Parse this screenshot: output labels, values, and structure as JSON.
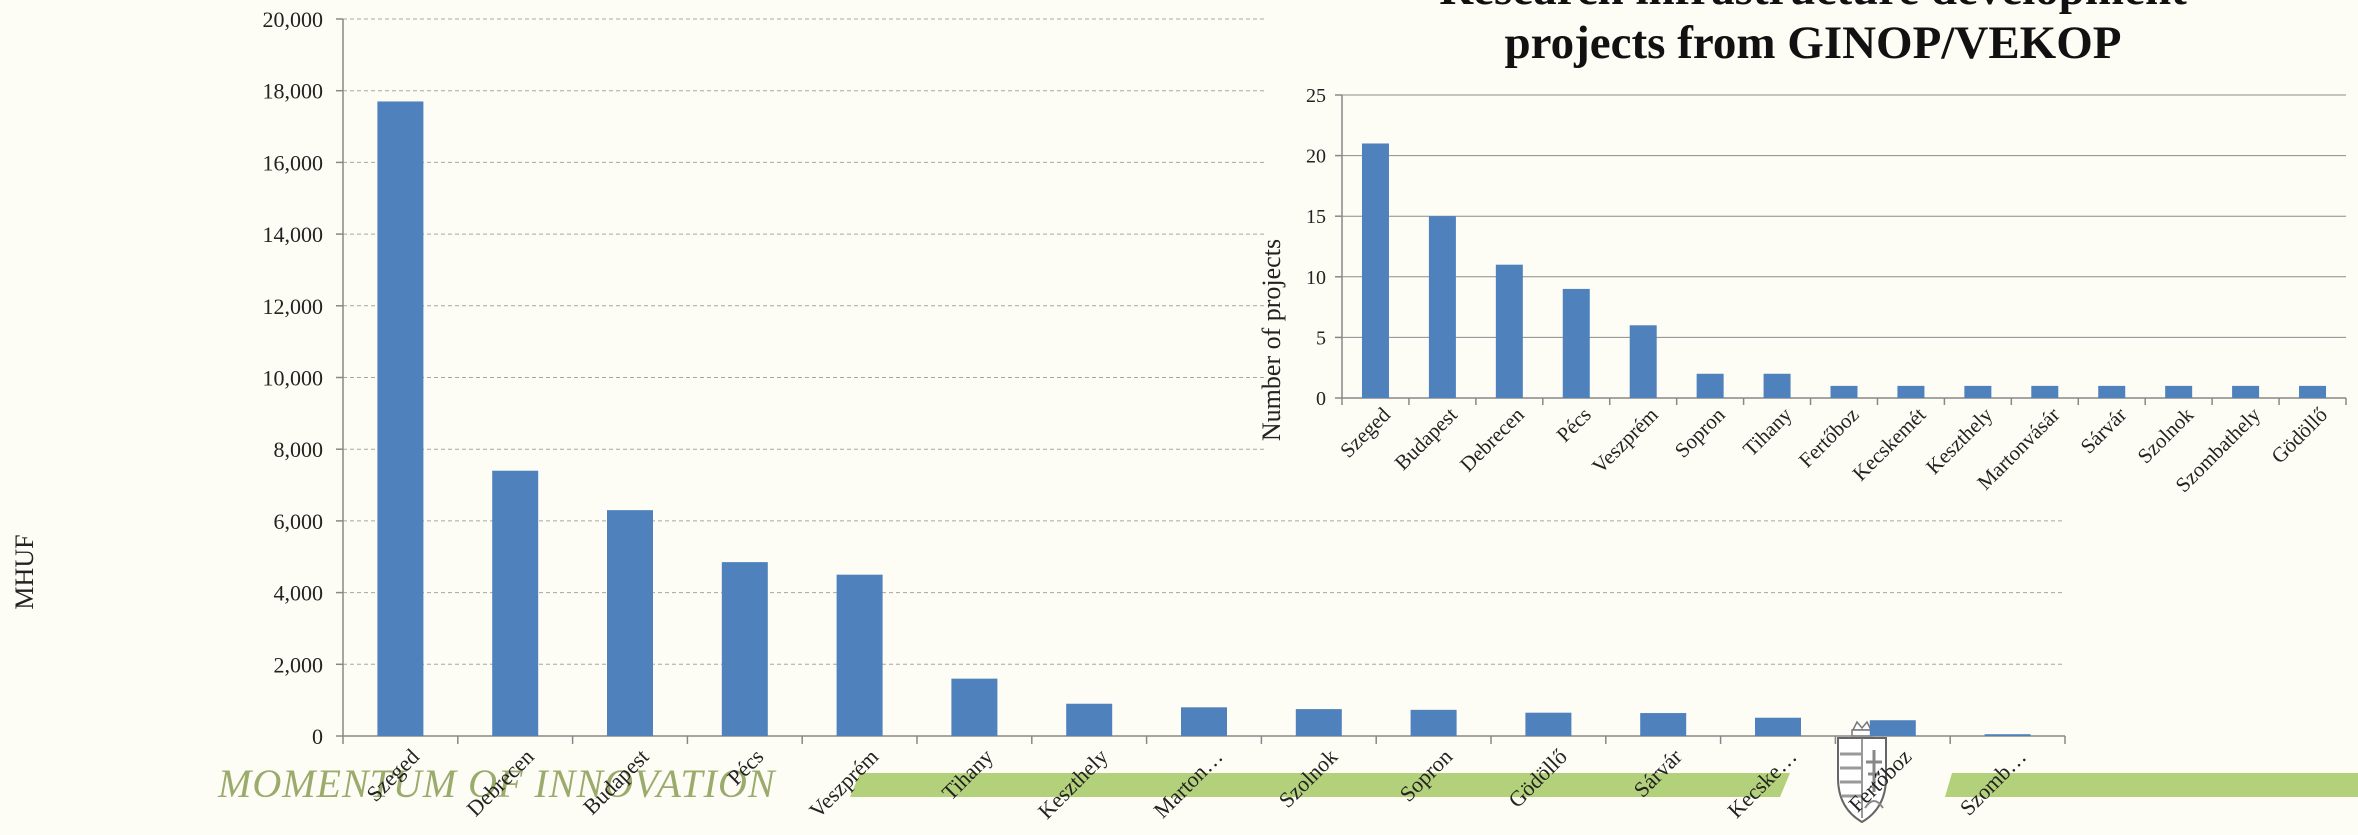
{
  "footer": {
    "text": "MOMENTUM OF INNOVATION",
    "band_color": "#b3d07a",
    "text_color": "#9aab6c",
    "emblem": "hungarian-coat-of-arms-icon"
  },
  "colors": {
    "bar": "#4f81bd",
    "grid": "#a6a6a6",
    "background": "#fdfdf6"
  },
  "chart_data": [
    {
      "type": "bar",
      "title": "",
      "xlabel": "",
      "ylabel": "MHUF",
      "ylim": [
        0,
        20000
      ],
      "yticks": [
        "0",
        "2,000",
        "4,000",
        "6,000",
        "8,000",
        "10,000",
        "12,000",
        "14,000",
        "16,000",
        "18,000",
        "20,000"
      ],
      "grid": true,
      "categories": [
        "Szeged",
        "Debrecen",
        "Budapest",
        "Pécs",
        "Veszprém",
        "Tihany",
        "Keszthely",
        "Marton…",
        "Szolnok",
        "Sopron",
        "Gödöllő",
        "Sárvár",
        "Kecske…",
        "Fertőboz",
        "Szomb…"
      ],
      "values": [
        17700,
        7400,
        6300,
        4850,
        4500,
        1600,
        900,
        800,
        750,
        730,
        650,
        640,
        510,
        440,
        50
      ]
    },
    {
      "type": "bar",
      "title": "Research infrastructure development projects from GINOP/VEKOP",
      "title_lines": [
        "Research infrastructure development",
        "projects from GINOP/VEKOP"
      ],
      "xlabel": "",
      "ylabel": "Number of projects",
      "ylim": [
        0,
        25
      ],
      "yticks": [
        "0",
        "5",
        "10",
        "15",
        "20",
        "25"
      ],
      "grid": true,
      "categories": [
        "Szeged",
        "Budapest",
        "Debrecen",
        "Pécs",
        "Veszprém",
        "Sopron",
        "Tihany",
        "Fertőboz",
        "Kecskemét",
        "Keszthely",
        "Martonvásár",
        "Sárvár",
        "Szolnok",
        "Szombathely",
        "Gödöllő"
      ],
      "values": [
        21,
        15,
        11,
        9,
        6,
        2,
        2,
        1,
        1,
        1,
        1,
        1,
        1,
        1,
        1
      ]
    }
  ]
}
